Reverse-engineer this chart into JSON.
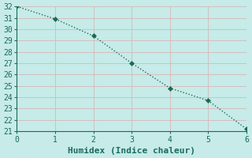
{
  "x": [
    0,
    1,
    2,
    3,
    4,
    5,
    6
  ],
  "y": [
    32.0,
    30.9,
    29.4,
    27.0,
    24.8,
    23.7,
    21.2
  ],
  "xlabel": "Humidex (Indice chaleur)",
  "xlim": [
    0,
    6
  ],
  "ylim": [
    21,
    32
  ],
  "xticks": [
    0,
    1,
    2,
    3,
    4,
    5,
    6
  ],
  "yticks": [
    21,
    22,
    23,
    24,
    25,
    26,
    27,
    28,
    29,
    30,
    31,
    32
  ],
  "background_color": "#c6ebe8",
  "plot_bg_color": "#c6ebe8",
  "line_color": "#1a6b5a",
  "grid_color": "#d4b8b8",
  "spine_color": "#1a6b5a",
  "marker": "D",
  "markersize": 3,
  "linewidth": 1.0,
  "xlabel_fontsize": 8,
  "tick_fontsize": 7,
  "linestyle": ":"
}
